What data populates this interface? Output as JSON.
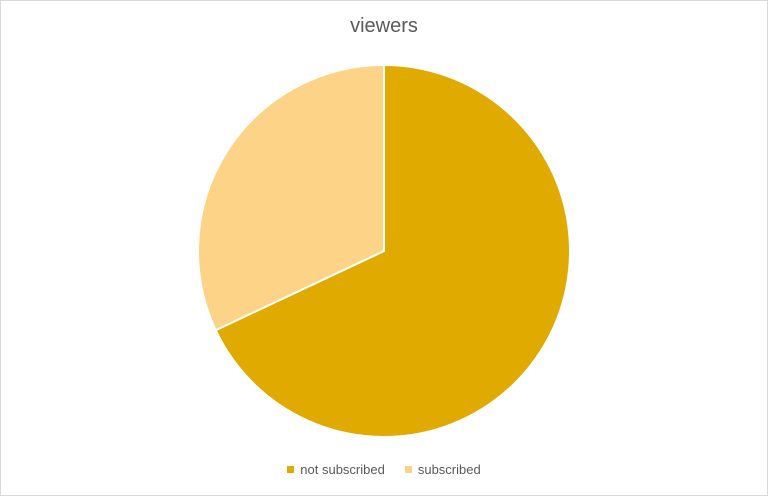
{
  "chart_data": {
    "type": "pie",
    "title": "viewers",
    "categories": [
      "not subscribed",
      "subscribed"
    ],
    "values": [
      68,
      32
    ],
    "colors": [
      "#e0aa00",
      "#fdd388"
    ],
    "start_angle_deg": 0,
    "direction": "clockwise",
    "legend_position": "bottom"
  }
}
